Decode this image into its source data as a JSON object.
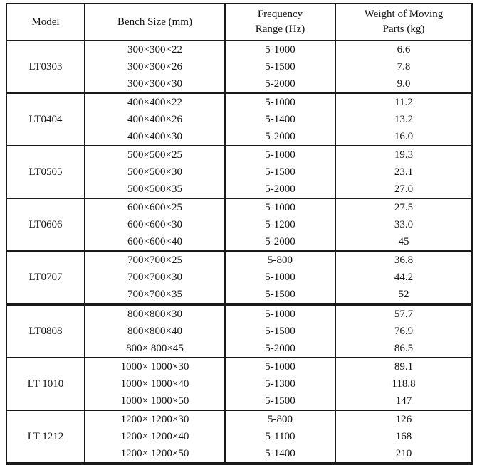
{
  "table": {
    "border_color": "#1a1a1a",
    "columns": [
      {
        "label_lines": [
          "Model"
        ]
      },
      {
        "label_lines": [
          "Bench Size (mm)"
        ]
      },
      {
        "label_lines": [
          "Frequency",
          "Range (Hz)"
        ]
      },
      {
        "label_lines": [
          "Weight of Moving",
          "Parts (kg)"
        ]
      }
    ],
    "groups": [
      {
        "model": "LT0303",
        "rows": [
          {
            "size": "300×300×22",
            "freq": "5-1000",
            "weight": "6.6"
          },
          {
            "size": "300×300×26",
            "freq": "5-1500",
            "weight": "7.8"
          },
          {
            "size": "300×300×30",
            "freq": "5-2000",
            "weight": "9.0"
          }
        ]
      },
      {
        "model": "LT0404",
        "rows": [
          {
            "size": "400×400×22",
            "freq": "5-1000",
            "weight": "11.2"
          },
          {
            "size": "400×400×26",
            "freq": "5-1400",
            "weight": "13.2"
          },
          {
            "size": "400×400×30",
            "freq": "5-2000",
            "weight": "16.0"
          }
        ]
      },
      {
        "model": "LT0505",
        "rows": [
          {
            "size": "500×500×25",
            "freq": "5-1000",
            "weight": "19.3"
          },
          {
            "size": "500×500×30",
            "freq": "5-1500",
            "weight": "23.1"
          },
          {
            "size": "500×500×35",
            "freq": "5-2000",
            "weight": "27.0"
          }
        ]
      },
      {
        "model": "LT0606",
        "rows": [
          {
            "size": "600×600×25",
            "freq": "5-1000",
            "weight": "27.5"
          },
          {
            "size": "600×600×30",
            "freq": "5-1200",
            "weight": "33.0"
          },
          {
            "size": "600×600×40",
            "freq": "5-2000",
            "weight": "45"
          }
        ]
      },
      {
        "model": "LT0707",
        "rows": [
          {
            "size": "700×700×25",
            "freq": "5-800",
            "weight": "36.8"
          },
          {
            "size": "700×700×30",
            "freq": "5-1000",
            "weight": "44.2"
          },
          {
            "size": "700×700×35",
            "freq": "5-1500",
            "weight": "52"
          }
        ]
      },
      {
        "model": "LT0808",
        "rows": [
          {
            "size": "800×800×30",
            "freq": "5-1000",
            "weight": "57.7"
          },
          {
            "size": "800×800×40",
            "freq": "5-1500",
            "weight": "76.9"
          },
          {
            "size": "800× 800×45",
            "freq": "5-2000",
            "weight": "86.5"
          }
        ]
      },
      {
        "model": "LT 1010",
        "rows": [
          {
            "size": "1000× 1000×30",
            "freq": "5-1000",
            "weight": "89.1"
          },
          {
            "size": "1000× 1000×40",
            "freq": "5-1300",
            "weight": "118.8"
          },
          {
            "size": "1000× 1000×50",
            "freq": "5-1500",
            "weight": "147"
          }
        ]
      },
      {
        "model": "LT 1212",
        "rows": [
          {
            "size": "1200× 1200×30",
            "freq": "5-800",
            "weight": "126"
          },
          {
            "size": "1200× 1200×40",
            "freq": "5-1100",
            "weight": "168"
          },
          {
            "size": "1200× 1200×50",
            "freq": "5-1400",
            "weight": "210"
          }
        ]
      }
    ]
  }
}
